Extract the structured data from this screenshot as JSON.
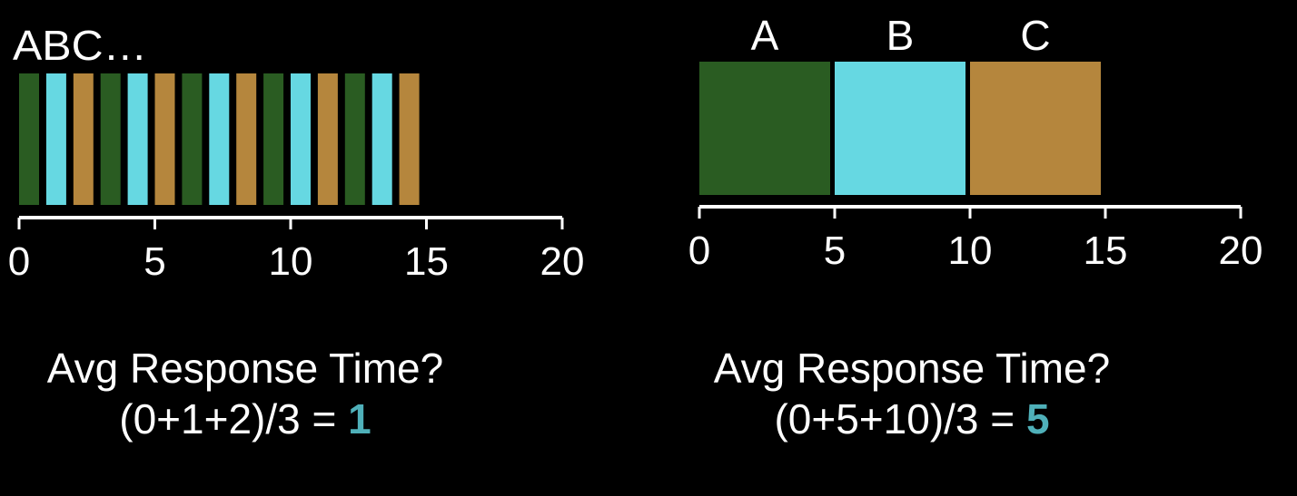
{
  "colors": {
    "green": "#2a5c22",
    "cyan": "#66d8e2",
    "tan": "#b5863d",
    "axis": "#ffffff",
    "answer": "#4fb0b9",
    "background": "#000000"
  },
  "left_panel": {
    "header": "ABC…",
    "slots": [
      "green",
      "cyan",
      "tan",
      "green",
      "cyan",
      "tan",
      "green",
      "cyan",
      "tan",
      "green",
      "cyan",
      "tan",
      "green",
      "cyan",
      "tan"
    ],
    "axis_ticks": [
      "0",
      "5",
      "10",
      "15",
      "20"
    ],
    "question": "Avg Response Time?",
    "formula": "(0+1+2)/3 = ",
    "answer": "1"
  },
  "right_panel": {
    "jobs": [
      {
        "label": "A",
        "start": 0,
        "end": 5,
        "color": "green"
      },
      {
        "label": "B",
        "start": 5,
        "end": 10,
        "color": "cyan"
      },
      {
        "label": "C",
        "start": 10,
        "end": 15,
        "color": "tan"
      }
    ],
    "axis_ticks": [
      "0",
      "5",
      "10",
      "15",
      "20"
    ],
    "question": "Avg Response Time?",
    "formula": "(0+5+10)/3 = ",
    "answer": "5"
  }
}
